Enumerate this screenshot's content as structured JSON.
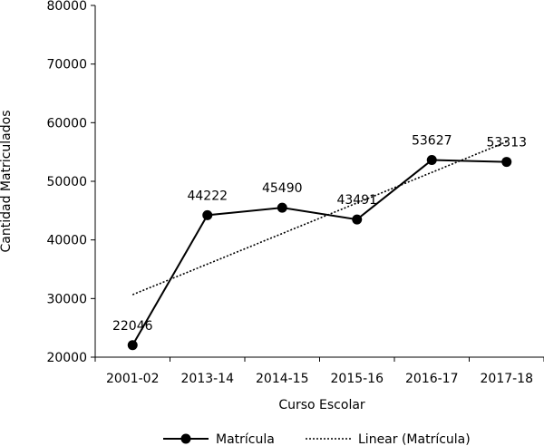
{
  "chart_data": {
    "type": "line",
    "title": "",
    "xlabel": "Curso Escolar",
    "ylabel": "Cantidad Matriculados",
    "categories": [
      "2001-02",
      "2013-14",
      "2014-15",
      "2015-16",
      "2016-17",
      "2017-18"
    ],
    "y_ticks": [
      "20000",
      "30000",
      "40000",
      "50000",
      "60000",
      "70000",
      "80000"
    ],
    "ylim": [
      20000,
      80000
    ],
    "grid": false,
    "legend_position": "bottom",
    "series": [
      {
        "name": "Matrícula",
        "values": [
          22046,
          44222,
          45490,
          43491,
          53627,
          53313
        ],
        "labels": [
          "22046",
          "44222",
          "45490",
          "43491",
          "53627",
          "53313"
        ],
        "color": "#000000",
        "marker": "circle",
        "line_style": "solid"
      }
    ],
    "trendline": {
      "name": "Linear (Matrícula)",
      "type": "linear",
      "of_series": "Matrícula",
      "color": "#000000",
      "line_style": "dotted"
    }
  }
}
